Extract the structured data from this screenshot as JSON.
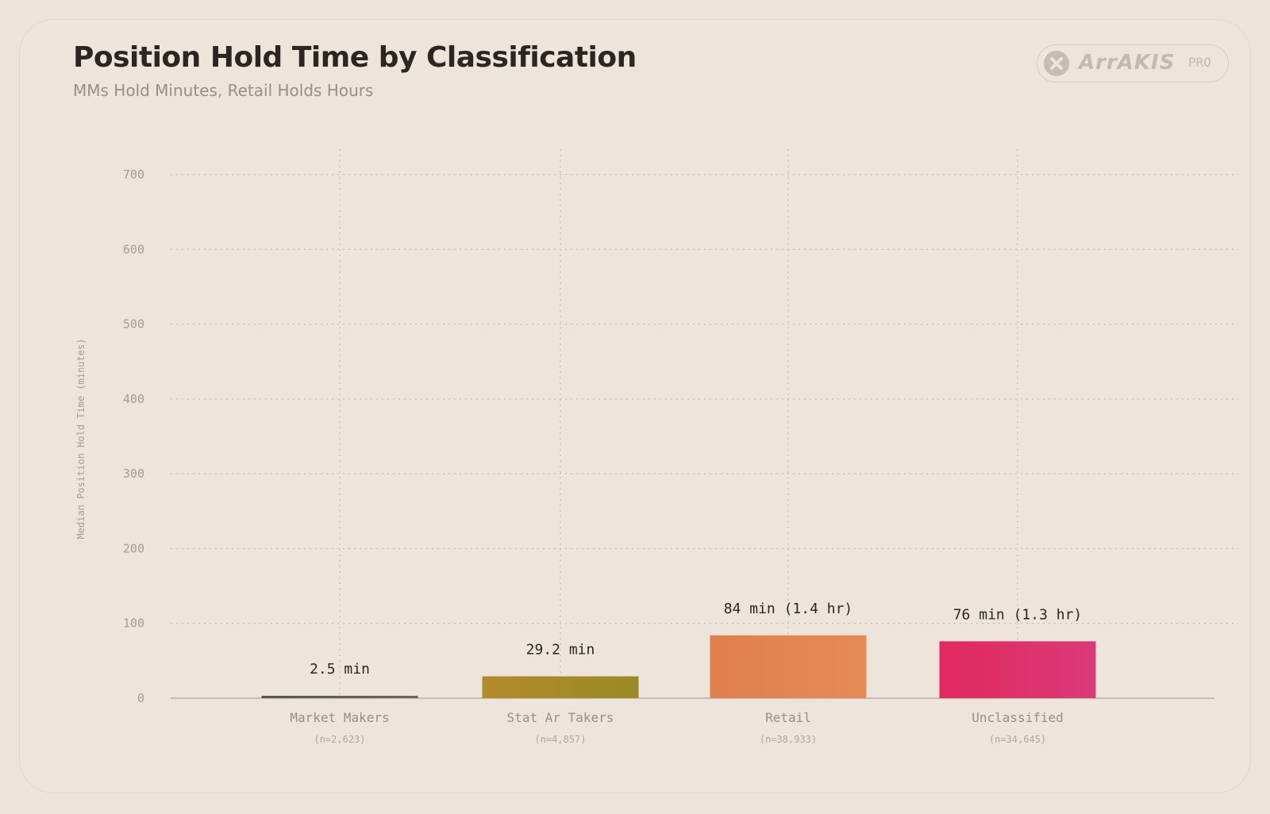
{
  "header": {
    "title": "Position Hold Time by Classification",
    "subtitle": "MMs Hold Minutes, Retail Holds Hours"
  },
  "brand": {
    "name": "ArrAKIS",
    "tier": "PRO",
    "icon": "x-circle-icon"
  },
  "colors": {
    "background": "#ece3db",
    "grid": "#c7b8a2",
    "axis_text": "#a89c90",
    "label_text": "#2b2622"
  },
  "chart_data": {
    "type": "bar",
    "title": "Position Hold Time by Classification",
    "subtitle": "MMs Hold Minutes, Retail Holds Hours",
    "xlabel": "",
    "ylabel": "Median Position Hold Time (minutes)",
    "ylim": [
      0,
      700
    ],
    "yticks": [
      0,
      100,
      200,
      300,
      400,
      500,
      600,
      700
    ],
    "grid": true,
    "legend": "none",
    "categories": [
      "Market Makers",
      "Stat Ar Takers",
      "Retail",
      "Unclassified"
    ],
    "sample_sizes": [
      "(n=2,623)",
      "(n=4,857)",
      "(n=38,933)",
      "(n=34,645)"
    ],
    "values": [
      2.5,
      29.2,
      84,
      76
    ],
    "value_labels": [
      "2.5 min",
      "29.2 min",
      "84 min (1.4 hr)",
      "76 min (1.3 hr)"
    ],
    "bar_colors": [
      [
        "#5a5652",
        "#6b6660"
      ],
      [
        "#b38a2a",
        "#9a8a25"
      ],
      [
        "#e07f4f",
        "#e48b55"
      ],
      [
        "#e22860",
        "#d93b78"
      ]
    ]
  }
}
